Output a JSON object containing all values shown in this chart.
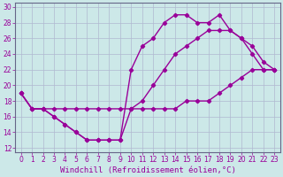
{
  "xlabel": "Windchill (Refroidissement éolien,°C)",
  "bg_color": "#cce8e8",
  "grid_color": "#b0b8d0",
  "line_color": "#990099",
  "xlim": [
    -0.5,
    23.5
  ],
  "ylim": [
    11.5,
    30.5
  ],
  "xticks": [
    0,
    1,
    2,
    3,
    4,
    5,
    6,
    7,
    8,
    9,
    10,
    11,
    12,
    13,
    14,
    15,
    16,
    17,
    18,
    19,
    20,
    21,
    22,
    23
  ],
  "yticks": [
    12,
    14,
    16,
    18,
    20,
    22,
    24,
    26,
    28,
    30
  ],
  "line1_x": [
    0,
    1,
    2,
    3,
    4,
    5,
    6,
    7,
    8,
    9,
    10,
    11,
    12,
    13,
    14,
    15,
    16,
    17,
    18,
    19,
    20,
    21,
    22,
    23
  ],
  "line1_y": [
    19,
    17,
    17,
    16,
    15,
    14,
    13,
    13,
    13,
    13,
    17,
    17,
    17,
    17,
    17,
    18,
    18,
    18,
    19,
    20,
    21,
    22,
    22,
    22
  ],
  "line2_x": [
    0,
    1,
    2,
    3,
    4,
    5,
    6,
    7,
    8,
    9,
    10,
    11,
    12,
    13,
    14,
    15,
    16,
    17,
    18,
    19,
    20,
    21,
    22,
    23
  ],
  "line2_y": [
    19,
    17,
    17,
    17,
    17,
    17,
    17,
    17,
    17,
    17,
    17,
    18,
    20,
    22,
    24,
    25,
    26,
    27,
    27,
    27,
    26,
    25,
    23,
    22
  ],
  "line3_x": [
    0,
    1,
    2,
    3,
    4,
    5,
    6,
    7,
    8,
    9,
    10,
    11,
    12,
    13,
    14,
    15,
    16,
    17,
    18,
    19,
    20,
    21,
    22,
    23
  ],
  "line3_y": [
    19,
    17,
    17,
    16,
    15,
    14,
    13,
    13,
    13,
    13,
    22,
    25,
    26,
    28,
    29,
    29,
    28,
    28,
    29,
    27,
    26,
    24,
    22,
    22
  ],
  "marker": "D",
  "marker_size": 2.2,
  "line_width": 1.0,
  "tick_fontsize": 5.5,
  "xlabel_fontsize": 6.5,
  "spine_color": "#666688"
}
